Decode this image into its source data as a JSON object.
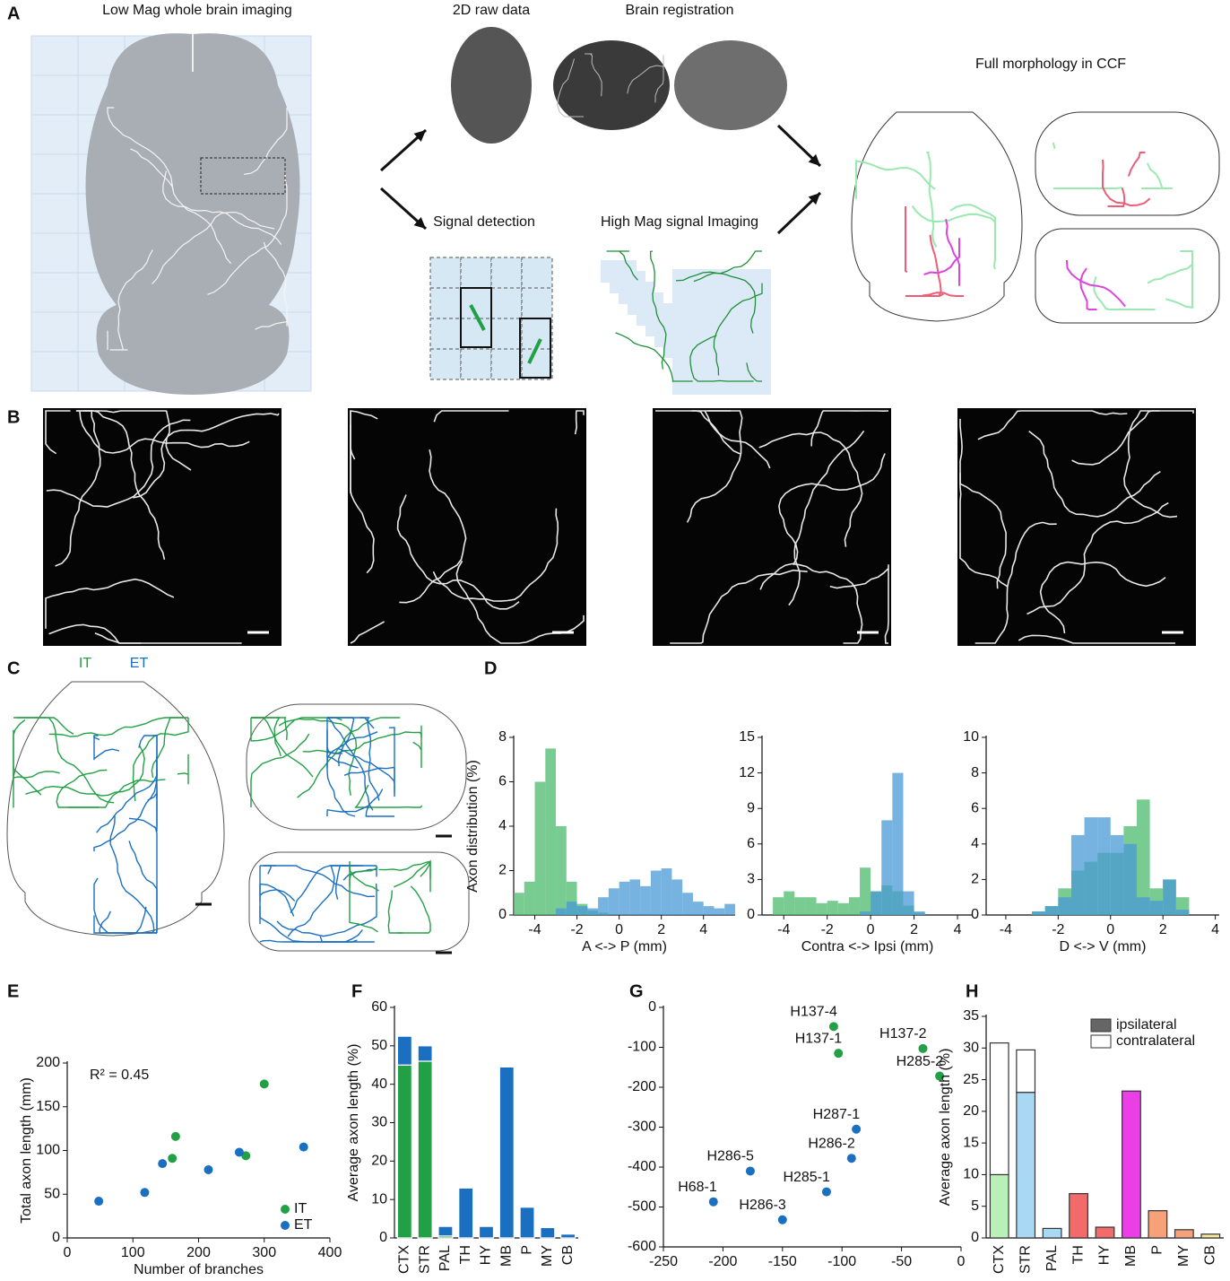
{
  "panel_labels": [
    "A",
    "B",
    "C",
    "D",
    "E",
    "F",
    "G",
    "H"
  ],
  "panel_a": {
    "low_mag": "Low Mag whole brain imaging",
    "raw_data": "2D raw data",
    "registration": "Brain registration",
    "full_morphology": "Full morphology in CCF",
    "signal_detection": "Signal detection",
    "high_mag": "High Mag signal Imaging"
  },
  "panel_c": {
    "it_label": "IT",
    "et_label": "ET"
  },
  "chart_data": [
    {
      "type": "histogram",
      "ylabel": "Axon distribution (%)",
      "xlabel": "A <-> P (mm)",
      "bins": [
        -5,
        -4.5,
        -4,
        -3.5,
        -3,
        -2.5,
        -2,
        -1.5,
        -1,
        -0.5,
        0,
        0.5,
        1,
        1.5,
        2,
        2.5,
        3,
        3.5,
        4,
        4.5,
        5,
        5.5
      ],
      "series": [
        {
          "color": "#4cbb6c",
          "values": [
            1,
            1.5,
            6,
            7.5,
            4,
            1.5,
            0.5,
            0.2,
            0.1,
            0,
            0,
            0,
            0,
            0,
            0,
            0,
            0,
            0,
            0,
            0,
            0
          ]
        },
        {
          "color": "#4a9ad6",
          "values": [
            0,
            0,
            0,
            0,
            0.3,
            0.6,
            0.4,
            0.3,
            0.8,
            1.2,
            1.5,
            1.6,
            1.3,
            2,
            2.1,
            1.6,
            1,
            0.6,
            0.4,
            0.3,
            0.5
          ]
        }
      ],
      "xlim": [
        -5,
        5.5
      ],
      "xticks": [
        -4,
        -2,
        0,
        2,
        4
      ],
      "ylim": [
        0,
        8
      ],
      "yticks": [
        0,
        2,
        4,
        6,
        8
      ]
    },
    {
      "type": "histogram",
      "xlabel": "Contra <-> Ipsi (mm)",
      "bins": [
        -4.5,
        -4,
        -3.5,
        -3,
        -2.5,
        -2,
        -1.5,
        -1,
        -0.5,
        0,
        0.5,
        1,
        1.5,
        2,
        2.5
      ],
      "series": [
        {
          "color": "#4cbb6c",
          "values": [
            1.5,
            2,
            1.5,
            1.5,
            1,
            1.2,
            1,
            1.5,
            4,
            2,
            2.5,
            2,
            0.8,
            0.2
          ]
        },
        {
          "color": "#4a9ad6",
          "values": [
            0,
            0,
            0,
            0,
            0,
            0,
            0,
            0,
            0.3,
            2,
            8,
            12,
            2,
            0.3
          ]
        }
      ],
      "xlim": [
        -5,
        4.7
      ],
      "xticks": [
        -4,
        -2,
        0,
        2,
        4
      ],
      "ylim": [
        0,
        15
      ],
      "yticks": [
        0,
        3,
        6,
        9,
        12,
        15
      ]
    },
    {
      "type": "histogram",
      "xlabel": "D <-> V (mm)",
      "bins": [
        -3,
        -2.5,
        -2,
        -1.5,
        -1,
        -0.5,
        0,
        0.5,
        1,
        1.5,
        2,
        2.5,
        3
      ],
      "series": [
        {
          "color": "#4cbb6c",
          "values": [
            0.2,
            0.5,
            1.5,
            2.5,
            3,
            3.5,
            3.5,
            5,
            6.5,
            1.5,
            2,
            1
          ]
        },
        {
          "color": "#4a9ad6",
          "values": [
            0.2,
            0.5,
            1,
            4.5,
            5.5,
            5.5,
            4.5,
            4,
            1,
            0.8,
            2,
            0.3
          ]
        }
      ],
      "xlim": [
        -4.75,
        4.15
      ],
      "xticks": [
        -4,
        -2,
        0,
        2,
        4
      ],
      "ylim": [
        0,
        10
      ],
      "yticks": [
        0,
        2,
        4,
        6,
        8,
        10
      ]
    },
    {
      "type": "scatter",
      "ylabel": "Total axon length (mm)",
      "xlabel": "Number of branches",
      "annotation": "R² = 0.45",
      "legend": "lower right",
      "series": [
        {
          "name": "IT",
          "color": "#22a045",
          "x": [
            160,
            165,
            272,
            300
          ],
          "values": [
            91,
            116,
            94,
            176
          ]
        },
        {
          "name": "ET",
          "color": "#1a6fc0",
          "x": [
            48,
            118,
            145,
            215,
            262,
            360
          ],
          "values": [
            42,
            52,
            85,
            78,
            98,
            104
          ]
        }
      ],
      "xlim": [
        0,
        400
      ],
      "xticks": [
        0,
        100,
        200,
        300,
        400
      ],
      "ylim": [
        0,
        200
      ],
      "yticks": [
        0,
        50,
        100,
        150,
        200
      ]
    },
    {
      "type": "bar",
      "ylabel": "Average axon length (%)",
      "stacked": true,
      "bar_stroke": "#ffffff",
      "categories": [
        "CTX",
        "STR",
        "PAL",
        "TH",
        "HY",
        "MB",
        "P",
        "MY",
        "CB"
      ],
      "series": [
        {
          "color": "#22a045",
          "values": [
            45,
            46,
            0.5,
            0,
            0,
            0,
            0,
            0,
            0
          ]
        },
        {
          "color": "#1a6fc0",
          "values": [
            7.5,
            4,
            2.5,
            13,
            3,
            44.5,
            8,
            2.7,
            1
          ]
        }
      ],
      "ylim": [
        0,
        60
      ],
      "yticks": [
        0,
        10,
        20,
        30,
        40,
        50,
        60
      ]
    },
    {
      "type": "scatter",
      "series": [
        {
          "color": "#22a045",
          "x": [
            -107,
            -103,
            -32,
            -18
          ],
          "values": [
            -48,
            -115,
            -103,
            -172
          ],
          "point_labels": [
            "H137-4",
            "H137-1",
            "H137-2",
            "H285-2"
          ]
        },
        {
          "color": "#1a6fc0",
          "x": [
            -88,
            -92,
            -177,
            -113,
            -208,
            -150
          ],
          "values": [
            -305,
            -378,
            -410,
            -462,
            -487,
            -532
          ],
          "point_labels": [
            "H287-1",
            "H286-2",
            "H286-5",
            "H285-1",
            "H68-1",
            "H286-3"
          ]
        }
      ],
      "xlim": [
        -250,
        0
      ],
      "xticks": [
        -250,
        -200,
        -150,
        -100,
        -50,
        0
      ],
      "ylim": [
        -600,
        0
      ],
      "yticks": [
        -600,
        -500,
        -400,
        -300,
        -200,
        -100,
        0
      ]
    },
    {
      "type": "bar",
      "ylabel": "Average axon length (%)",
      "stacked": true,
      "bar_stroke": "#333333",
      "legend": "upper right",
      "categories": [
        "CTX",
        "STR",
        "PAL",
        "TH",
        "HY",
        "MB",
        "P",
        "MY",
        "CB"
      ],
      "series": [
        {
          "name": "ipsilateral",
          "legend_color": "#666666",
          "colors": [
            "#b8f0b8",
            "#a9d8f5",
            "#a9d8f5",
            "#f26b6b",
            "#f26b6b",
            "#ea3fe6",
            "#f5a27a",
            "#f5a27a",
            "#f3e69b"
          ],
          "values": [
            10,
            23,
            1.5,
            7,
            1.7,
            23.2,
            4.3,
            1.3,
            0.6
          ]
        },
        {
          "name": "contralateral",
          "legend_color": "#ffffff",
          "color": "#ffffff",
          "values": [
            20.8,
            6.7,
            0,
            0,
            0,
            0,
            0,
            0,
            0
          ]
        }
      ],
      "ylim": [
        0,
        35
      ],
      "yticks": [
        0,
        5,
        10,
        15,
        20,
        25,
        30,
        35
      ]
    }
  ]
}
